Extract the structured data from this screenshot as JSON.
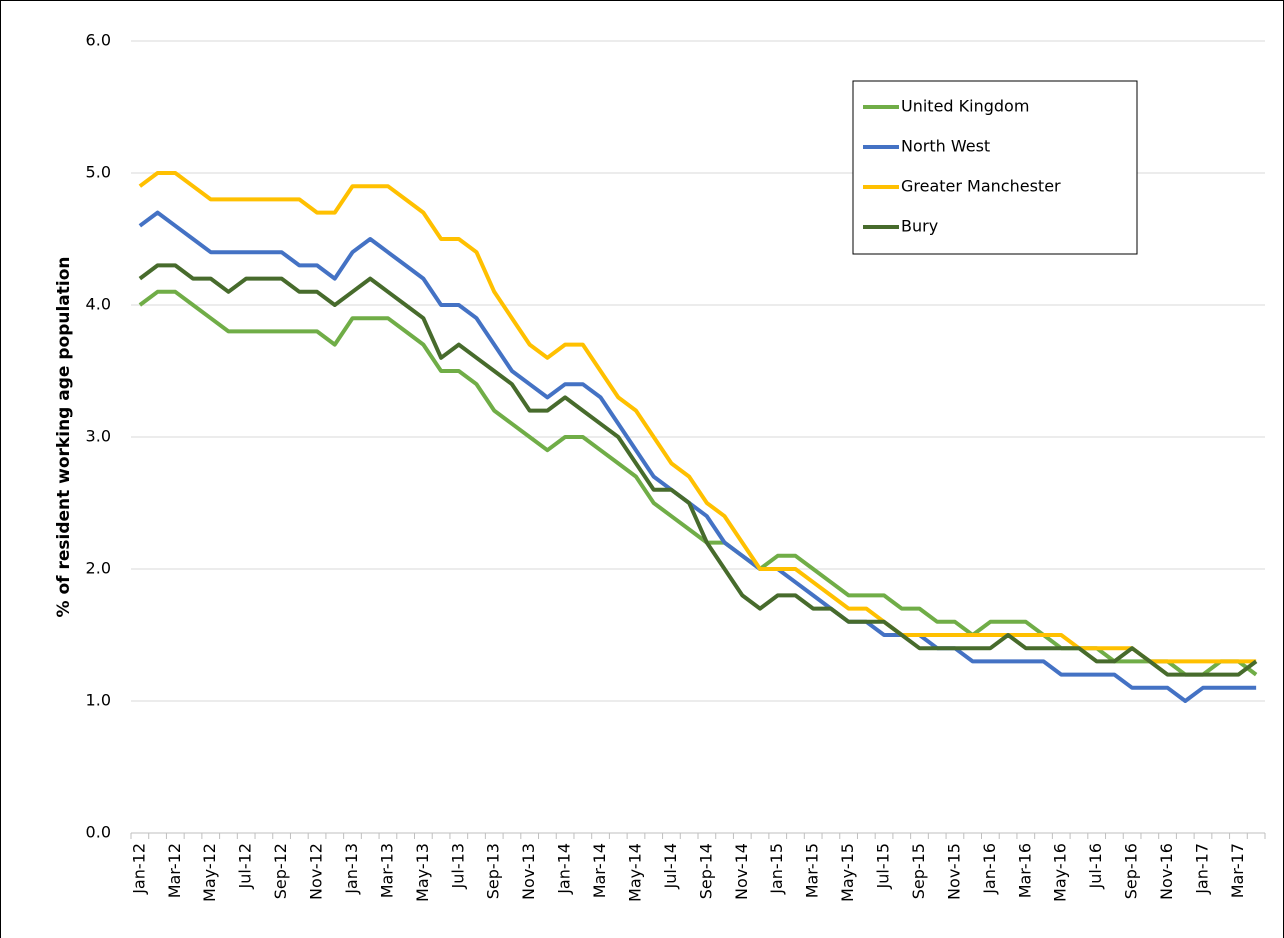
{
  "chart_data": {
    "type": "line",
    "y_label": "% of resident working age population",
    "categories": [
      "Jan-12",
      null,
      "Mar-12",
      null,
      "May-12",
      null,
      "Jul-12",
      null,
      "Sep-12",
      null,
      "Nov-12",
      null,
      "Jan-13",
      null,
      "Mar-13",
      null,
      "May-13",
      null,
      "Jul-13",
      null,
      "Sep-13",
      null,
      "Nov-13",
      null,
      "Jan-14",
      null,
      "Mar-14",
      null,
      "May-14",
      null,
      "Jul-14",
      null,
      "Sep-14",
      null,
      "Nov-14",
      null,
      "Jan-15",
      null,
      "Mar-15",
      null,
      "May-15",
      null,
      "Jul-15",
      null,
      "Sep-15",
      null,
      "Nov-15",
      null,
      "Jan-16",
      null,
      "Mar-16",
      null,
      "May-16",
      null,
      "Jul-16",
      null,
      "Sep-16",
      null,
      "Nov-16",
      null,
      "Jan-17",
      null,
      "Mar-17",
      null
    ],
    "series": [
      {
        "name": "United Kingdom",
        "color": "#70ad47",
        "values": [
          4.0,
          4.1,
          4.1,
          4.0,
          3.9,
          3.8,
          3.8,
          3.8,
          3.8,
          3.8,
          3.8,
          3.7,
          3.9,
          3.9,
          3.9,
          3.8,
          3.7,
          3.5,
          3.5,
          3.4,
          3.2,
          3.1,
          3.0,
          2.9,
          3.0,
          3.0,
          2.9,
          2.8,
          2.7,
          2.5,
          2.4,
          2.3,
          2.2,
          2.2,
          2.1,
          2.0,
          2.1,
          2.1,
          2.0,
          1.9,
          1.8,
          1.8,
          1.8,
          1.7,
          1.7,
          1.6,
          1.6,
          1.5,
          1.6,
          1.6,
          1.6,
          1.5,
          1.4,
          1.4,
          1.4,
          1.3,
          1.3,
          1.3,
          1.3,
          1.2,
          1.2,
          1.3,
          1.3,
          1.2
        ]
      },
      {
        "name": "North West",
        "color": "#4472c4",
        "values": [
          4.6,
          4.7,
          4.6,
          4.5,
          4.4,
          4.4,
          4.4,
          4.4,
          4.4,
          4.3,
          4.3,
          4.2,
          4.4,
          4.5,
          4.4,
          4.3,
          4.2,
          4.0,
          4.0,
          3.9,
          3.7,
          3.5,
          3.4,
          3.3,
          3.4,
          3.4,
          3.3,
          3.1,
          2.9,
          2.7,
          2.6,
          2.5,
          2.4,
          2.2,
          2.1,
          2.0,
          2.0,
          1.9,
          1.8,
          1.7,
          1.6,
          1.6,
          1.5,
          1.5,
          1.5,
          1.4,
          1.4,
          1.3,
          1.3,
          1.3,
          1.3,
          1.3,
          1.2,
          1.2,
          1.2,
          1.2,
          1.1,
          1.1,
          1.1,
          1.0,
          1.1,
          1.1,
          1.1,
          1.1
        ]
      },
      {
        "name": "Greater Manchester",
        "color": "#ffc000",
        "values": [
          4.9,
          5.0,
          5.0,
          4.9,
          4.8,
          4.8,
          4.8,
          4.8,
          4.8,
          4.8,
          4.7,
          4.7,
          4.9,
          4.9,
          4.9,
          4.8,
          4.7,
          4.5,
          4.5,
          4.4,
          4.1,
          3.9,
          3.7,
          3.6,
          3.7,
          3.7,
          3.5,
          3.3,
          3.2,
          3.0,
          2.8,
          2.7,
          2.5,
          2.4,
          2.2,
          2.0,
          2.0,
          2.0,
          1.9,
          1.8,
          1.7,
          1.7,
          1.6,
          1.5,
          1.5,
          1.5,
          1.5,
          1.5,
          1.5,
          1.5,
          1.5,
          1.5,
          1.5,
          1.4,
          1.4,
          1.4,
          1.4,
          1.3,
          1.3,
          1.3,
          1.3,
          1.3,
          1.3,
          1.3
        ]
      },
      {
        "name": "Bury",
        "color": "#476b2c",
        "values": [
          4.2,
          4.3,
          4.3,
          4.2,
          4.2,
          4.1,
          4.2,
          4.2,
          4.2,
          4.1,
          4.1,
          4.0,
          4.1,
          4.2,
          4.1,
          4.0,
          3.9,
          3.6,
          3.7,
          3.6,
          3.5,
          3.4,
          3.2,
          3.2,
          3.3,
          3.2,
          3.1,
          3.0,
          2.8,
          2.6,
          2.6,
          2.5,
          2.2,
          2.0,
          1.8,
          1.7,
          1.8,
          1.8,
          1.7,
          1.7,
          1.6,
          1.6,
          1.6,
          1.5,
          1.4,
          1.4,
          1.4,
          1.4,
          1.4,
          1.5,
          1.4,
          1.4,
          1.4,
          1.4,
          1.3,
          1.3,
          1.4,
          1.3,
          1.2,
          1.2,
          1.2,
          1.2,
          1.2,
          1.3
        ]
      }
    ],
    "ylim": [
      0,
      6
    ],
    "yticks": [
      {
        "value": 0,
        "label": "0.0"
      },
      {
        "value": 1,
        "label": "1.0"
      },
      {
        "value": 2,
        "label": "2.0"
      },
      {
        "value": 3,
        "label": "3.0"
      },
      {
        "value": 4,
        "label": "4.0"
      },
      {
        "value": 5,
        "label": "5.0"
      },
      {
        "value": 6,
        "label": "6.0"
      }
    ],
    "grid": true
  }
}
